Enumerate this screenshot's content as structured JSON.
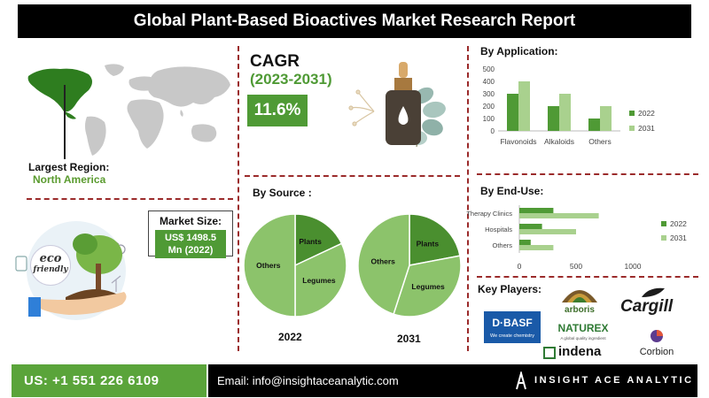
{
  "header": {
    "title": "Global Plant-Based Bioactives Market Research Report"
  },
  "region": {
    "label": "Largest Region:",
    "value": "North America"
  },
  "cagr": {
    "label": "CAGR",
    "period": "(2023-2031)",
    "value": "11.6%"
  },
  "market_size": {
    "label": "Market Size:",
    "value_line1": "US$ 1498.5",
    "value_line2": "Mn (2022)"
  },
  "eco": {
    "badge_line1": "eco",
    "badge_line2": "friendly"
  },
  "source_section": {
    "title": "By Source :"
  },
  "application_section": {
    "title": "By Application:"
  },
  "enduse_section": {
    "title": "By End-Use:"
  },
  "players": {
    "title": "Key Players:",
    "logos": {
      "arboris": "arboris",
      "cargill": "Cargill",
      "basf_name": "BASF",
      "basf_tag": "We create chemistry",
      "basf_mark": "D·",
      "naturex": "NATUREX",
      "naturex_tag": "A global quality ingredient",
      "indena": "indena",
      "corbion": "Corbion"
    }
  },
  "footer": {
    "phone": "US: +1 551 226 6109",
    "email": "Email: info@insightaceanalytic.com",
    "brand": "INSIGHT ACE ANALYTIC"
  },
  "colors": {
    "dark_green": "#4f9a35",
    "light_green": "#a9d18e",
    "pie_dark": "#4a8f2f",
    "pie_light": "#8cc36b",
    "divider": "#9b2b2b"
  },
  "chart_data": [
    {
      "id": "by-application",
      "type": "bar",
      "categories": [
        "Flavonoids",
        "Alkaloids",
        "Others"
      ],
      "series": [
        {
          "name": "2022",
          "values": [
            300,
            200,
            100
          ]
        },
        {
          "name": "2031",
          "values": [
            400,
            300,
            200
          ]
        }
      ],
      "ylim": [
        0,
        500
      ],
      "yticks": [
        0,
        100,
        200,
        300,
        400,
        500
      ],
      "legend": "right",
      "grid": false
    },
    {
      "id": "by-end-use",
      "type": "bar",
      "orientation": "horizontal",
      "categories": [
        "Therapy Clinics",
        "Hospitals",
        "Others"
      ],
      "series": [
        {
          "name": "2022",
          "values": [
            300,
            200,
            100
          ]
        },
        {
          "name": "2031",
          "values": [
            700,
            500,
            300
          ]
        }
      ],
      "xlim": [
        0,
        1000
      ],
      "xticks": [
        0,
        500,
        1000
      ],
      "legend": "right",
      "grid": false
    },
    {
      "id": "source-2022",
      "type": "pie",
      "title": "2022",
      "labels": [
        "Plants",
        "Legumes",
        "Others"
      ],
      "values": [
        18,
        32,
        50
      ]
    },
    {
      "id": "source-2031",
      "type": "pie",
      "title": "2031",
      "labels": [
        "Plants",
        "Legumes",
        "Others"
      ],
      "values": [
        22,
        33,
        45
      ]
    }
  ]
}
